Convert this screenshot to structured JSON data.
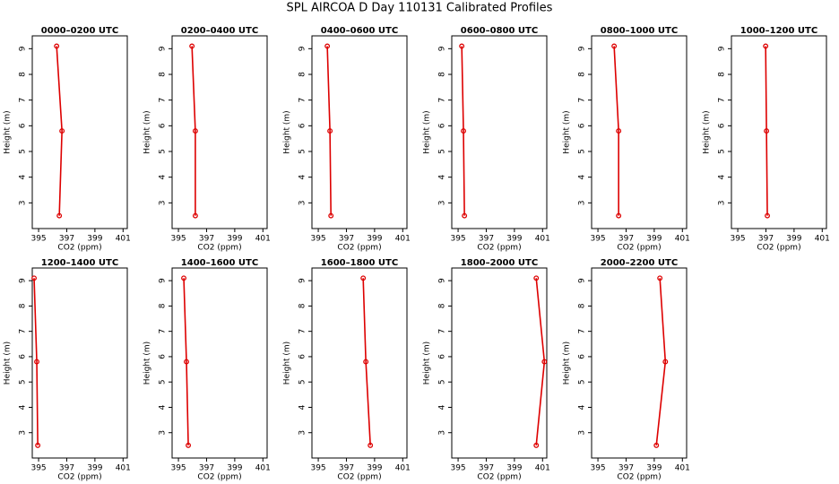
{
  "title": "SPL AIRCOA D  Day 110131  Calibrated Profiles",
  "chart_data": [
    {
      "type": "line",
      "title": "0000–0200 UTC",
      "xlabel": "CO2 (ppm)",
      "ylabel": "Height (m)",
      "color": "#dd0000",
      "x": [
        396.28,
        396.66,
        396.47
      ],
      "values": [
        9.1,
        5.8,
        2.5
      ],
      "xlim": [
        394.55,
        401.3
      ],
      "ylim": [
        2.0,
        9.5
      ],
      "xticks": [
        395,
        397,
        399,
        401
      ],
      "yticks": [
        3,
        4,
        5,
        6,
        7,
        8,
        9
      ]
    },
    {
      "type": "line",
      "title": "0200–0400 UTC",
      "xlabel": "CO2 (ppm)",
      "ylabel": "Height (m)",
      "color": "#dd0000",
      "x": [
        395.96,
        396.2,
        396.2
      ],
      "values": [
        9.1,
        5.8,
        2.5
      ],
      "xlim": [
        394.55,
        401.3
      ],
      "ylim": [
        2.0,
        9.5
      ],
      "xticks": [
        395,
        397,
        399,
        401
      ],
      "yticks": [
        3,
        4,
        5,
        6,
        7,
        8,
        9
      ]
    },
    {
      "type": "line",
      "title": "0400–0600 UTC",
      "xlabel": "CO2 (ppm)",
      "ylabel": "Height (m)",
      "color": "#dd0000",
      "x": [
        395.64,
        395.83,
        395.9
      ],
      "values": [
        9.1,
        5.8,
        2.5
      ],
      "xlim": [
        394.55,
        401.3
      ],
      "ylim": [
        2.0,
        9.5
      ],
      "xticks": [
        395,
        397,
        399,
        401
      ],
      "yticks": [
        3,
        4,
        5,
        6,
        7,
        8,
        9
      ]
    },
    {
      "type": "line",
      "title": "0600–0800 UTC",
      "xlabel": "CO2 (ppm)",
      "ylabel": "Height (m)",
      "color": "#dd0000",
      "x": [
        395.26,
        395.38,
        395.45
      ],
      "values": [
        9.1,
        5.8,
        2.5
      ],
      "xlim": [
        394.55,
        401.3
      ],
      "ylim": [
        2.0,
        9.5
      ],
      "xticks": [
        395,
        397,
        399,
        401
      ],
      "yticks": [
        3,
        4,
        5,
        6,
        7,
        8,
        9
      ]
    },
    {
      "type": "line",
      "title": "0800–1000 UTC",
      "xlabel": "CO2 (ppm)",
      "ylabel": "Height (m)",
      "color": "#dd0000",
      "x": [
        396.15,
        396.47,
        396.47
      ],
      "values": [
        9.1,
        5.8,
        2.5
      ],
      "xlim": [
        394.55,
        401.3
      ],
      "ylim": [
        2.0,
        9.5
      ],
      "xticks": [
        395,
        397,
        399,
        401
      ],
      "yticks": [
        3,
        4,
        5,
        6,
        7,
        8,
        9
      ]
    },
    {
      "type": "line",
      "title": "1000–1200 UTC",
      "xlabel": "CO2 (ppm)",
      "ylabel": "Height (m)",
      "color": "#dd0000",
      "x": [
        396.98,
        397.04,
        397.1
      ],
      "values": [
        9.1,
        5.8,
        2.5
      ],
      "xlim": [
        394.55,
        401.3
      ],
      "ylim": [
        2.0,
        9.5
      ],
      "xticks": [
        395,
        397,
        399,
        401
      ],
      "yticks": [
        3,
        4,
        5,
        6,
        7,
        8,
        9
      ]
    },
    {
      "type": "line",
      "title": "1200–1400 UTC",
      "xlabel": "CO2 (ppm)",
      "ylabel": "Height (m)",
      "color": "#dd0000",
      "x": [
        394.68,
        394.87,
        394.94
      ],
      "values": [
        9.1,
        5.8,
        2.5
      ],
      "xlim": [
        394.55,
        401.3
      ],
      "ylim": [
        2.0,
        9.5
      ],
      "xticks": [
        395,
        397,
        399,
        401
      ],
      "yticks": [
        3,
        4,
        5,
        6,
        7,
        8,
        9
      ]
    },
    {
      "type": "line",
      "title": "1400–1600 UTC",
      "xlabel": "CO2 (ppm)",
      "ylabel": "Height (m)",
      "color": "#dd0000",
      "x": [
        395.38,
        395.57,
        395.7
      ],
      "values": [
        9.1,
        5.8,
        2.5
      ],
      "xlim": [
        394.55,
        401.3
      ],
      "ylim": [
        2.0,
        9.5
      ],
      "xticks": [
        395,
        397,
        399,
        401
      ],
      "yticks": [
        3,
        4,
        5,
        6,
        7,
        8,
        9
      ]
    },
    {
      "type": "line",
      "title": "1600–1800 UTC",
      "xlabel": "CO2 (ppm)",
      "ylabel": "Height (m)",
      "color": "#dd0000",
      "x": [
        398.19,
        398.38,
        398.7
      ],
      "values": [
        9.1,
        5.8,
        2.5
      ],
      "xlim": [
        394.55,
        401.3
      ],
      "ylim": [
        2.0,
        9.5
      ],
      "xticks": [
        395,
        397,
        399,
        401
      ],
      "yticks": [
        3,
        4,
        5,
        6,
        7,
        8,
        9
      ]
    },
    {
      "type": "line",
      "title": "1800–2000 UTC",
      "xlabel": "CO2 (ppm)",
      "ylabel": "Height (m)",
      "color": "#dd0000",
      "x": [
        400.55,
        401.13,
        400.55
      ],
      "values": [
        9.1,
        5.8,
        2.5
      ],
      "xlim": [
        394.55,
        401.3
      ],
      "ylim": [
        2.0,
        9.5
      ],
      "xticks": [
        395,
        397,
        399,
        401
      ],
      "yticks": [
        3,
        4,
        5,
        6,
        7,
        8,
        9
      ]
    },
    {
      "type": "line",
      "title": "2000–2200 UTC",
      "xlabel": "CO2 (ppm)",
      "ylabel": "Height (m)",
      "color": "#dd0000",
      "x": [
        399.4,
        399.79,
        399.15
      ],
      "values": [
        9.1,
        5.8,
        2.5
      ],
      "xlim": [
        394.55,
        401.3
      ],
      "ylim": [
        2.0,
        9.5
      ],
      "xticks": [
        395,
        397,
        399,
        401
      ],
      "yticks": [
        3,
        4,
        5,
        6,
        7,
        8,
        9
      ]
    }
  ]
}
